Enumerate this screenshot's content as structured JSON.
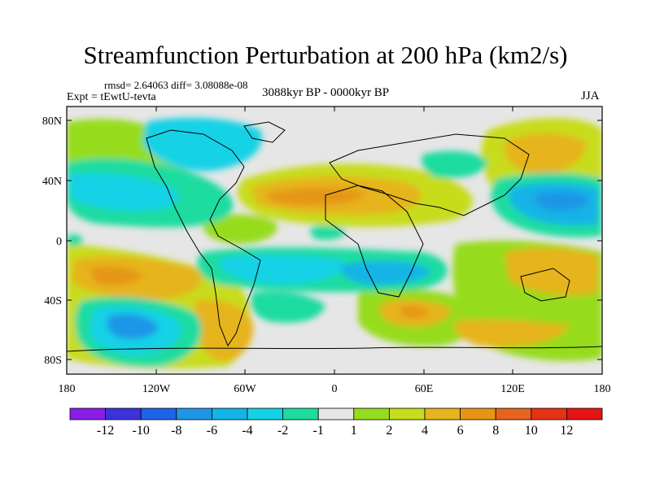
{
  "title": "Streamfunction Perturbation at 200 hPa (km2/s)",
  "stats": "rmsd= 2.64063 diff= 3.08088e-08",
  "experiment": "Expt = tEwtU-tevta",
  "period": "3088kyr BP - 0000kyr BP",
  "season": "JJA",
  "lat_ticks": [
    "80N",
    "40N",
    "0",
    "40S",
    "80S"
  ],
  "lon_ticks": [
    "180",
    "120W",
    "60W",
    "0",
    "60E",
    "120E",
    "180"
  ],
  "colorbar": {
    "labels": [
      "-12",
      "-10",
      "-8",
      "-6",
      "-4",
      "-2",
      "-1",
      "1",
      "2",
      "4",
      "6",
      "8",
      "10",
      "12"
    ],
    "colors": [
      "#8a1ee6",
      "#3c32dc",
      "#1e64e6",
      "#1e96e6",
      "#14b4e6",
      "#14d2e6",
      "#1edca0",
      "#e6e6e6",
      "#96dc1e",
      "#c8dc1e",
      "#e6b41e",
      "#e69614",
      "#e6641e",
      "#e63214",
      "#e61414"
    ]
  }
}
